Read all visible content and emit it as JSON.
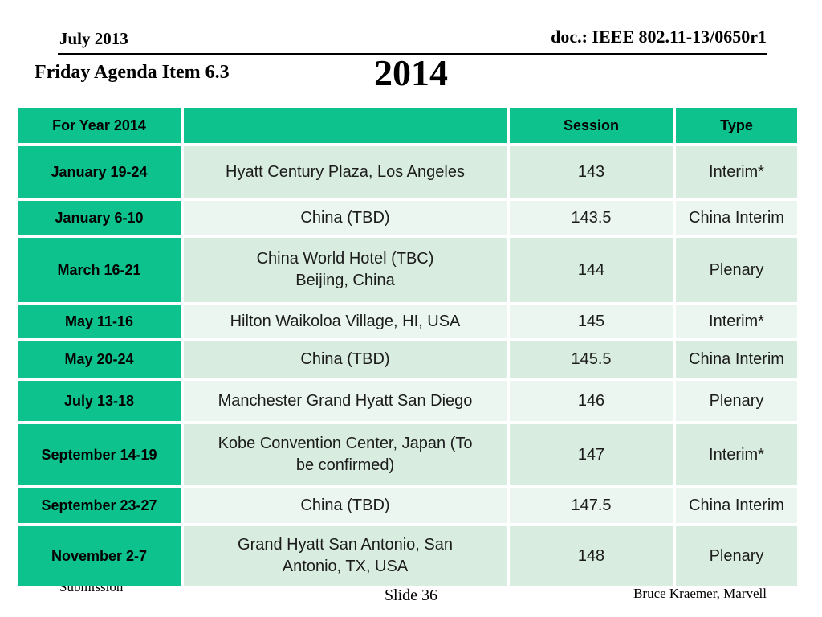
{
  "slide": {
    "header": {
      "date": "July 2013",
      "doc": "doc.: IEEE 802.11-13/0650r1"
    },
    "agenda_title": "Friday Agenda Item 6.3",
    "year_title": "2014",
    "footer": {
      "left": "Submission",
      "center": "Slide 36",
      "right": "Bruce Kraemer, Marvell"
    }
  },
  "table": {
    "header": {
      "year": "For Year 2014",
      "venue": "",
      "session": "Session",
      "type": "Type"
    },
    "rows": [
      {
        "date": "January 19-24",
        "venue": "Hyatt Century Plaza, Los Angeles",
        "session": "143",
        "type": "Interim*"
      },
      {
        "date": "January 6-10",
        "venue": "China (TBD)",
        "session": "143.5",
        "type": "China Interim"
      },
      {
        "date": "March 16-21",
        "venue": "China World Hotel (TBC)\nBeijing, China",
        "session": "144",
        "type": "Plenary"
      },
      {
        "date": "May 11-16",
        "venue": "Hilton Waikoloa Village, HI, USA",
        "session": "145",
        "type": "Interim*"
      },
      {
        "date": "May 20-24",
        "venue": "China (TBD)",
        "session": "145.5",
        "type": "China Interim"
      },
      {
        "date": "July 13-18",
        "venue": "Manchester Grand Hyatt San Diego",
        "session": "146",
        "type": "Plenary"
      },
      {
        "date": "September 14-19",
        "venue": "Kobe Convention Center, Japan (To\nbe confirmed)",
        "session": "147",
        "type": "Interim*"
      },
      {
        "date": "September 23-27",
        "venue": "China (TBD)",
        "session": "147.5",
        "type": "China Interim"
      },
      {
        "date": "November 2-7",
        "venue": "Grand Hyatt San Antonio, San\nAntonio, TX, USA",
        "session": "148",
        "type": "Plenary"
      }
    ]
  },
  "colors": {
    "accent_green": "#0ec28e",
    "row_shade_dark": "#d8ecdf",
    "row_shade_light": "#eaf6ef",
    "text": "#000000"
  }
}
